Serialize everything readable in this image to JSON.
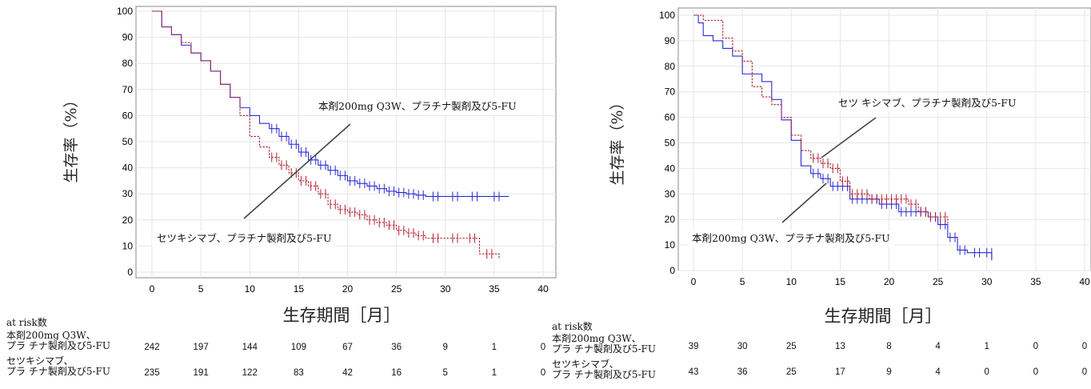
{
  "chart_data": [
    {
      "type": "line",
      "ylabel": "生存率（%）",
      "xlabel": "生存期間［月］",
      "xlim": [
        0,
        40
      ],
      "ylim": [
        0,
        100
      ],
      "xticks": [
        0,
        5,
        10,
        15,
        20,
        25,
        30,
        35,
        40
      ],
      "yticks": [
        0,
        10,
        20,
        30,
        40,
        50,
        60,
        70,
        80,
        90,
        100
      ],
      "grid": true,
      "annotations": [
        {
          "text": "本剤200mg Q3W、プラチナ製剤及び5-FU"
        },
        {
          "text": "セツキシマブ、プラチナ製剤及び5-FU"
        }
      ],
      "series": [
        {
          "color": "#2b2bd6",
          "style": "solid",
          "x": [
            0,
            1,
            2,
            3,
            4,
            5,
            6,
            7,
            8,
            9,
            10,
            11,
            12,
            13,
            14,
            15,
            16,
            17,
            18,
            19,
            20,
            21,
            22,
            23,
            24,
            25,
            26,
            27,
            28,
            30,
            32,
            34,
            36.5
          ],
          "y": [
            100,
            94,
            91,
            87,
            84,
            81,
            77,
            72,
            67,
            63,
            60,
            57,
            55,
            52,
            49,
            46,
            43,
            41,
            39,
            37,
            35,
            34,
            33,
            32,
            31,
            30.5,
            30,
            29.5,
            29,
            29,
            29,
            29,
            29
          ]
        },
        {
          "color": "#b22234",
          "style": "dashed",
          "x": [
            0,
            1,
            2,
            3,
            4,
            5,
            6,
            7,
            8,
            9,
            10,
            11,
            12,
            13,
            14,
            15,
            16,
            17,
            18,
            19,
            20,
            21,
            22,
            23,
            24,
            25,
            26,
            27,
            28,
            30,
            32,
            33.5,
            35.5
          ],
          "y": [
            100,
            94,
            91,
            88,
            84,
            81,
            77,
            72,
            67,
            60,
            52,
            48,
            44,
            41,
            38,
            35,
            33,
            30,
            26,
            24,
            23,
            22,
            20,
            19,
            18,
            16,
            15,
            14,
            13,
            13,
            13,
            7,
            5
          ]
        }
      ],
      "at_risk": {
        "title": "at risk数",
        "x": [
          0,
          5,
          10,
          15,
          20,
          25,
          30,
          35,
          40
        ],
        "rows": [
          {
            "label": [
              "本剤200mg Q3W、",
              "プラ チナ製剤及び5-FU"
            ],
            "values": [
              242,
              197,
              144,
              109,
              67,
              36,
              9,
              1,
              0
            ]
          },
          {
            "label": [
              "セツキシマブ、",
              "プラ チナ製剤及び5-FU"
            ],
            "values": [
              235,
              191,
              122,
              83,
              42,
              16,
              5,
              1,
              0
            ]
          }
        ]
      }
    },
    {
      "type": "line",
      "ylabel": "生存率（%）",
      "xlabel": "生存期間［月］",
      "xlim": [
        0,
        40
      ],
      "ylim": [
        0,
        100
      ],
      "xticks": [
        0,
        5,
        10,
        15,
        20,
        25,
        30,
        35,
        40
      ],
      "yticks": [
        0,
        10,
        20,
        30,
        40,
        50,
        60,
        70,
        80,
        90,
        100
      ],
      "grid": true,
      "annotations": [
        {
          "text": "セツ キシマブ、プラチナ製剤及び5-FU"
        },
        {
          "text": "本剤200mg Q3W、プラチナ製剤及び5-FU"
        }
      ],
      "series": [
        {
          "color": "#2b2bd6",
          "style": "solid",
          "x": [
            0,
            0.5,
            1,
            2,
            3,
            4,
            5,
            6,
            7,
            8,
            9,
            10,
            11,
            12,
            13,
            14,
            15,
            16,
            17,
            18,
            19,
            20,
            21,
            22,
            23,
            24,
            25,
            26,
            27,
            28,
            30,
            30.5
          ],
          "y": [
            100,
            97,
            92,
            90,
            87,
            84,
            77,
            77,
            74,
            67,
            59,
            51,
            41,
            38,
            36,
            33,
            33,
            28,
            28,
            28,
            26,
            26,
            23,
            23,
            23,
            21,
            18,
            13,
            8,
            7,
            7,
            4
          ]
        },
        {
          "color": "#b22234",
          "style": "dashed",
          "x": [
            0,
            1,
            2,
            3,
            4,
            5,
            6,
            7,
            8,
            9,
            10,
            11,
            12,
            13,
            14,
            15,
            16,
            17,
            18,
            19,
            20,
            21,
            22,
            23,
            24,
            25,
            26
          ],
          "y": [
            100,
            98,
            98,
            91,
            86,
            82,
            72,
            68,
            65,
            60,
            53,
            47,
            44,
            42,
            40,
            35,
            30,
            30,
            28,
            28,
            28,
            28,
            26,
            23,
            21,
            21,
            18
          ]
        }
      ],
      "at_risk": {
        "title": "at risk数",
        "x": [
          0,
          5,
          10,
          15,
          20,
          25,
          30,
          35,
          40
        ],
        "rows": [
          {
            "label": [
              "本剤200mg Q3W、",
              "プラ チナ製剤及び5-FU"
            ],
            "values": [
              39,
              30,
              25,
              13,
              8,
              4,
              1,
              0,
              0
            ]
          },
          {
            "label": [
              "セツキシマブ、",
              "プラ チナ製剤及び5-FU"
            ],
            "values": [
              43,
              36,
              25,
              17,
              9,
              4,
              0,
              0,
              0
            ]
          }
        ]
      }
    }
  ]
}
